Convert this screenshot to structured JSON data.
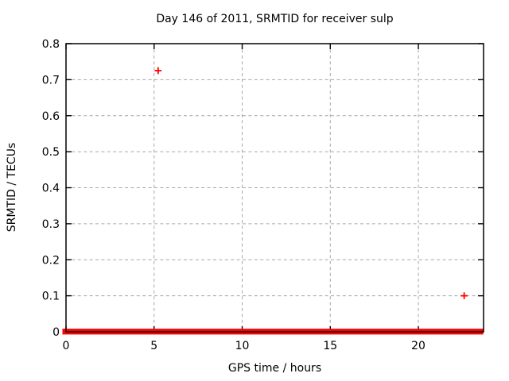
{
  "window": {
    "background": "#ffffff"
  },
  "colors": {
    "marker": "#ff0000",
    "grid": "#a6a6a6",
    "axis": "#000000",
    "text": "#000000",
    "background": "#ffffff"
  },
  "chart_data": {
    "type": "scatter",
    "title": "Day 146 of 2011, SRMTID for receiver sulp",
    "xlabel": "GPS time / hours",
    "ylabel": "SRMTID / TECUs",
    "xlim": [
      0,
      23.7
    ],
    "ylim": [
      0,
      0.8
    ],
    "xticks": [
      {
        "value": 0,
        "label": "0"
      },
      {
        "value": 5,
        "label": "5"
      },
      {
        "value": 10,
        "label": "10"
      },
      {
        "value": 15,
        "label": "15"
      },
      {
        "value": 20,
        "label": "20"
      }
    ],
    "yticks": [
      {
        "value": 0.0,
        "label": "0"
      },
      {
        "value": 0.1,
        "label": "0.1"
      },
      {
        "value": 0.2,
        "label": "0.2"
      },
      {
        "value": 0.3,
        "label": "0.3"
      },
      {
        "value": 0.4,
        "label": "0.4"
      },
      {
        "value": 0.5,
        "label": "0.5"
      },
      {
        "value": 0.6,
        "label": "0.6"
      },
      {
        "value": 0.7,
        "label": "0.7"
      },
      {
        "value": 0.8,
        "label": "0.8"
      }
    ],
    "grid": true,
    "grid_style": "dashed",
    "legend": "off",
    "series": [
      {
        "name": "SRMTID",
        "marker": "plus",
        "color": "#ff0000",
        "baseline_band": {
          "x_start": 0.0,
          "x_end": 23.7,
          "y": 0.0,
          "note": "dense overlapping + markers at ~0 TECUs forming a solid red band along the x-axis"
        },
        "outliers": [
          {
            "x": 5.23,
            "y": 0.725
          },
          {
            "x": 22.6,
            "y": 0.1
          }
        ]
      }
    ]
  }
}
